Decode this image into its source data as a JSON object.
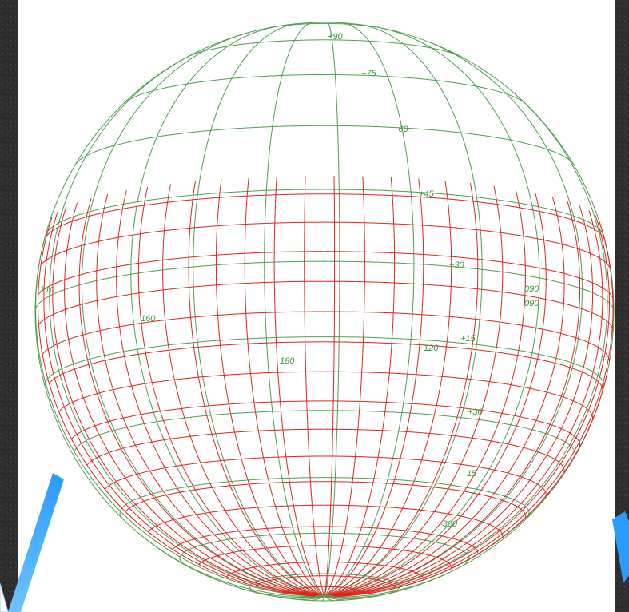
{
  "colors": {
    "graticule": "#4e9e4e",
    "coverage": "#e0241c",
    "accent": "#1f8fff",
    "background": "#2b2b2b"
  },
  "latitude_labels": [
    "+90",
    "+75",
    "+60",
    "+45",
    "+30",
    "+15",
    "+30",
    "15",
    "-300"
  ],
  "longitude_labels": [
    "310",
    "160",
    "180",
    "120",
    "090",
    "090"
  ]
}
